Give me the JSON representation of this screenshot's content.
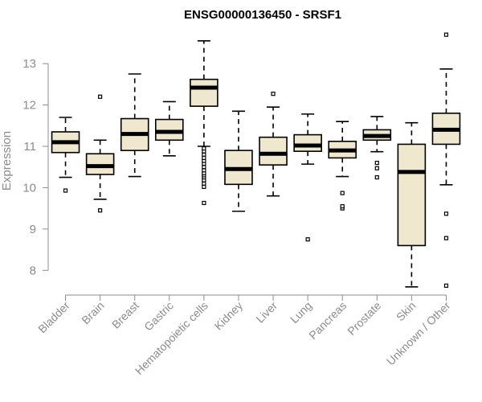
{
  "chart_data": {
    "type": "box",
    "title": "ENSG00000136450 - SRSF1",
    "ylabel": "Expression",
    "xlabel": "",
    "ylim": [
      7.5,
      13.8
    ],
    "yticks": [
      8,
      9,
      10,
      11,
      12,
      13
    ],
    "grid": false,
    "box_color": "#efe8cf",
    "categories": [
      "Bladder",
      "Brain",
      "Breast",
      "Gastric",
      "Hematopoietic cells",
      "Kidney",
      "Liver",
      "Lung",
      "Pancreas",
      "Prostate",
      "Skin",
      "Unknown / Other"
    ],
    "boxes": [
      {
        "whisker_low": 10.25,
        "q1": 10.85,
        "median": 11.1,
        "q3": 11.35,
        "whisker_high": 11.7,
        "outliers": [
          9.93
        ]
      },
      {
        "whisker_low": 9.72,
        "q1": 10.32,
        "median": 10.52,
        "q3": 10.82,
        "whisker_high": 11.15,
        "outliers": [
          9.45,
          12.2
        ]
      },
      {
        "whisker_low": 10.27,
        "q1": 10.9,
        "median": 11.3,
        "q3": 11.67,
        "whisker_high": 12.75,
        "outliers": []
      },
      {
        "whisker_low": 10.77,
        "q1": 11.15,
        "median": 11.35,
        "q3": 11.65,
        "whisker_high": 12.08,
        "outliers": []
      },
      {
        "whisker_low": 11.0,
        "q1": 11.97,
        "median": 12.42,
        "q3": 12.62,
        "whisker_high": 13.55,
        "outliers": [
          9.63,
          10.02,
          10.1,
          10.18,
          10.25,
          10.3,
          10.35,
          10.42,
          10.5,
          10.58,
          10.65,
          10.72,
          10.8,
          10.88,
          10.95
        ]
      },
      {
        "whisker_low": 9.43,
        "q1": 10.08,
        "median": 10.45,
        "q3": 10.9,
        "whisker_high": 11.85,
        "outliers": []
      },
      {
        "whisker_low": 9.8,
        "q1": 10.55,
        "median": 10.82,
        "q3": 11.22,
        "whisker_high": 11.95,
        "outliers": [
          12.27
        ]
      },
      {
        "whisker_low": 10.57,
        "q1": 10.88,
        "median": 11.02,
        "q3": 11.28,
        "whisker_high": 11.78,
        "outliers": [
          8.75
        ]
      },
      {
        "whisker_low": 10.27,
        "q1": 10.72,
        "median": 10.9,
        "q3": 11.12,
        "whisker_high": 11.6,
        "outliers": [
          9.5,
          9.55,
          9.87
        ]
      },
      {
        "whisker_low": 10.87,
        "q1": 11.15,
        "median": 11.25,
        "q3": 11.4,
        "whisker_high": 11.72,
        "outliers": [
          10.25,
          10.47,
          10.6
        ]
      },
      {
        "whisker_low": 7.6,
        "q1": 8.6,
        "median": 10.38,
        "q3": 11.05,
        "whisker_high": 11.57,
        "outliers": []
      },
      {
        "whisker_low": 10.07,
        "q1": 11.05,
        "median": 11.4,
        "q3": 11.8,
        "whisker_high": 12.87,
        "outliers": [
          7.63,
          8.78,
          9.37,
          13.7
        ]
      }
    ]
  }
}
